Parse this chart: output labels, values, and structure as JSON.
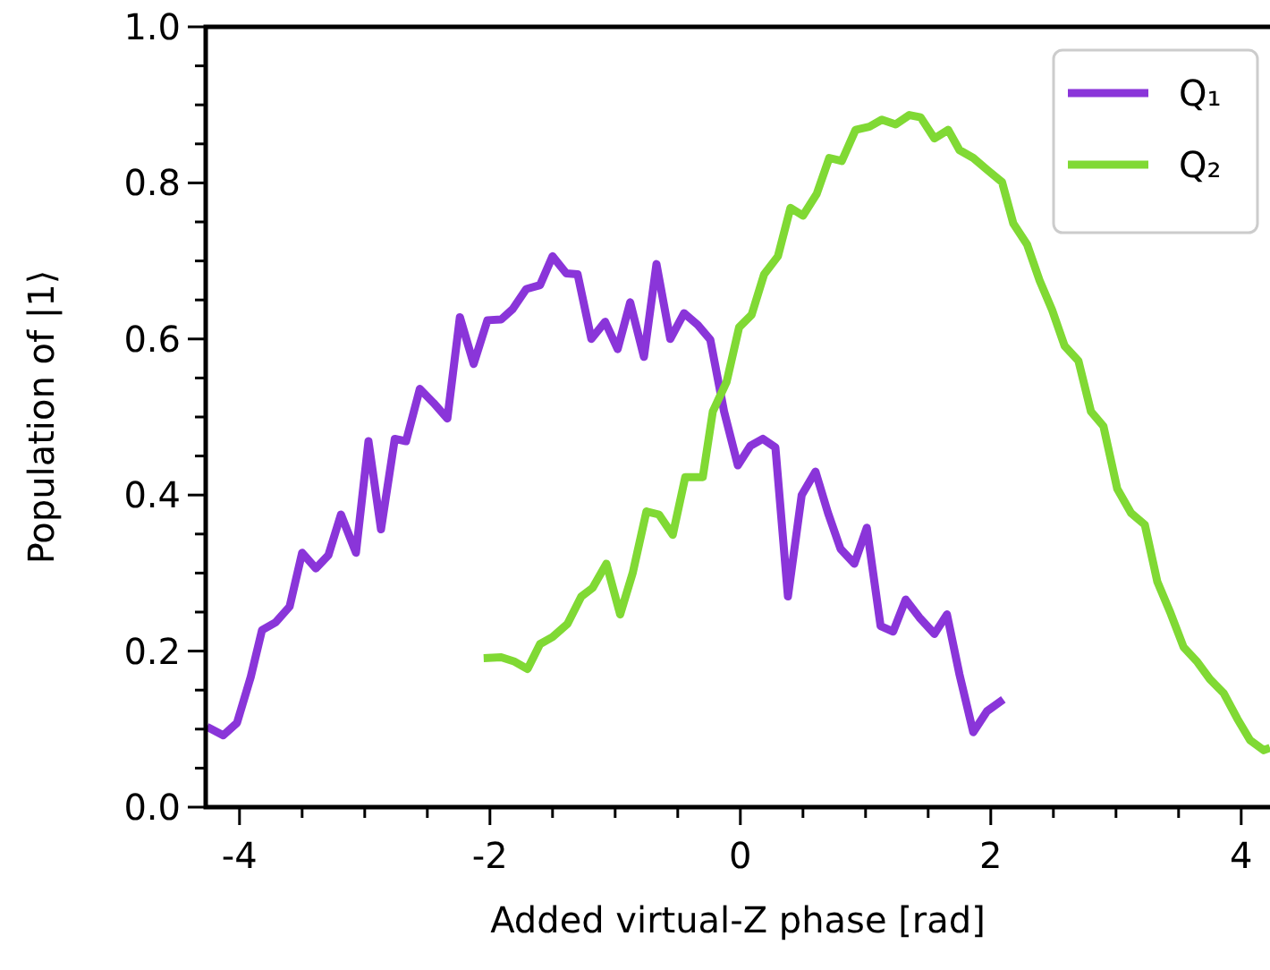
{
  "chart_data": {
    "type": "line",
    "xlabel": "Added virtual-Z phase [rad]",
    "ylabel": "Population of |1⟩",
    "xlim": [
      -4.27,
      4.23
    ],
    "ylim": [
      0,
      1
    ],
    "xticks": [
      {
        "value": -4,
        "label": "-4"
      },
      {
        "value": -3.5,
        "label": null
      },
      {
        "value": -3,
        "label": null
      },
      {
        "value": -2.5,
        "label": null
      },
      {
        "value": -2,
        "label": "-2"
      },
      {
        "value": -1.5,
        "label": null
      },
      {
        "value": -1,
        "label": null
      },
      {
        "value": -0.5,
        "label": null
      },
      {
        "value": 0,
        "label": "0"
      },
      {
        "value": 0.5,
        "label": null
      },
      {
        "value": 1,
        "label": null
      },
      {
        "value": 1.5,
        "label": null
      },
      {
        "value": 2,
        "label": "2"
      },
      {
        "value": 2.5,
        "label": null
      },
      {
        "value": 3,
        "label": null
      },
      {
        "value": 3.5,
        "label": null
      },
      {
        "value": 4,
        "label": "4"
      }
    ],
    "yticks": [
      {
        "value": 0,
        "label": "0.0"
      },
      {
        "value": 0.05,
        "label": null
      },
      {
        "value": 0.1,
        "label": null
      },
      {
        "value": 0.15,
        "label": null
      },
      {
        "value": 0.2,
        "label": "0.2"
      },
      {
        "value": 0.25,
        "label": null
      },
      {
        "value": 0.3,
        "label": null
      },
      {
        "value": 0.35,
        "label": null
      },
      {
        "value": 0.4,
        "label": "0.4"
      },
      {
        "value": 0.45,
        "label": null
      },
      {
        "value": 0.5,
        "label": null
      },
      {
        "value": 0.55,
        "label": null
      },
      {
        "value": 0.6,
        "label": "0.6"
      },
      {
        "value": 0.65,
        "label": null
      },
      {
        "value": 0.7,
        "label": null
      },
      {
        "value": 0.75,
        "label": null
      },
      {
        "value": 0.8,
        "label": "0.8"
      },
      {
        "value": 0.85,
        "label": null
      },
      {
        "value": 0.9,
        "label": null
      },
      {
        "value": 0.95,
        "label": null
      },
      {
        "value": 1,
        "label": "1.0"
      }
    ],
    "grid": false,
    "legend": "top right",
    "line_style": "solid",
    "marker": "none",
    "series": [
      {
        "name": "Q₁",
        "color": "#8a35d9",
        "x": [
          -4.26,
          -4.13,
          -4.02,
          -3.91,
          -3.82,
          -3.71,
          -3.6,
          -3.5,
          -3.39,
          -3.29,
          -3.19,
          -3.07,
          -2.97,
          -2.87,
          -2.76,
          -2.67,
          -2.56,
          -2.45,
          -2.34,
          -2.24,
          -2.13,
          -2.02,
          -1.91,
          -1.82,
          -1.71,
          -1.6,
          -1.5,
          -1.39,
          -1.3,
          -1.19,
          -1.08,
          -0.98,
          -0.88,
          -0.77,
          -0.67,
          -0.56,
          -0.45,
          -0.34,
          -0.24,
          -0.13,
          -0.02,
          0.08,
          0.18,
          0.28,
          0.38,
          0.49,
          0.6,
          0.7,
          0.8,
          0.91,
          1.01,
          1.12,
          1.22,
          1.32,
          1.43,
          1.55,
          1.65,
          1.75,
          1.86,
          1.97,
          2.1
        ],
        "values": [
          0.103,
          0.092,
          0.108,
          0.167,
          0.227,
          0.237,
          0.257,
          0.326,
          0.306,
          0.323,
          0.375,
          0.326,
          0.469,
          0.356,
          0.472,
          0.469,
          0.536,
          0.518,
          0.498,
          0.628,
          0.568,
          0.624,
          0.625,
          0.638,
          0.664,
          0.669,
          0.706,
          0.684,
          0.683,
          0.6,
          0.622,
          0.587,
          0.647,
          0.577,
          0.696,
          0.6,
          0.633,
          0.618,
          0.599,
          0.507,
          0.438,
          0.463,
          0.472,
          0.461,
          0.27,
          0.4,
          0.43,
          0.377,
          0.331,
          0.312,
          0.358,
          0.232,
          0.225,
          0.266,
          0.243,
          0.222,
          0.247,
          0.17,
          0.096,
          0.123,
          0.138
        ]
      },
      {
        "name": "Q₂",
        "color": "#80d934",
        "x": [
          -2.05,
          -1.91,
          -1.81,
          -1.7,
          -1.6,
          -1.5,
          -1.38,
          -1.27,
          -1.18,
          -1.07,
          -0.96,
          -0.86,
          -0.75,
          -0.65,
          -0.54,
          -0.44,
          -0.3,
          -0.22,
          -0.11,
          -0.01,
          0.09,
          0.19,
          0.3,
          0.4,
          0.5,
          0.61,
          0.71,
          0.81,
          0.92,
          1.03,
          1.13,
          1.24,
          1.35,
          1.44,
          1.55,
          1.66,
          1.75,
          1.86,
          1.97,
          2.09,
          2.18,
          2.29,
          2.39,
          2.49,
          2.59,
          2.7,
          2.8,
          2.9,
          3.01,
          3.12,
          3.23,
          3.33,
          3.43,
          3.54,
          3.65,
          3.75,
          3.86,
          3.97,
          4.07,
          4.18,
          4.23
        ],
        "values": [
          0.191,
          0.192,
          0.187,
          0.177,
          0.209,
          0.218,
          0.235,
          0.27,
          0.281,
          0.312,
          0.247,
          0.3,
          0.379,
          0.375,
          0.349,
          0.423,
          0.423,
          0.507,
          0.545,
          0.615,
          0.631,
          0.683,
          0.706,
          0.768,
          0.758,
          0.786,
          0.832,
          0.828,
          0.868,
          0.872,
          0.881,
          0.875,
          0.887,
          0.884,
          0.857,
          0.868,
          0.842,
          0.832,
          0.817,
          0.801,
          0.748,
          0.721,
          0.675,
          0.637,
          0.591,
          0.572,
          0.507,
          0.488,
          0.408,
          0.377,
          0.362,
          0.289,
          0.251,
          0.205,
          0.186,
          0.164,
          0.146,
          0.113,
          0.086,
          0.073,
          0.076
        ]
      }
    ]
  }
}
